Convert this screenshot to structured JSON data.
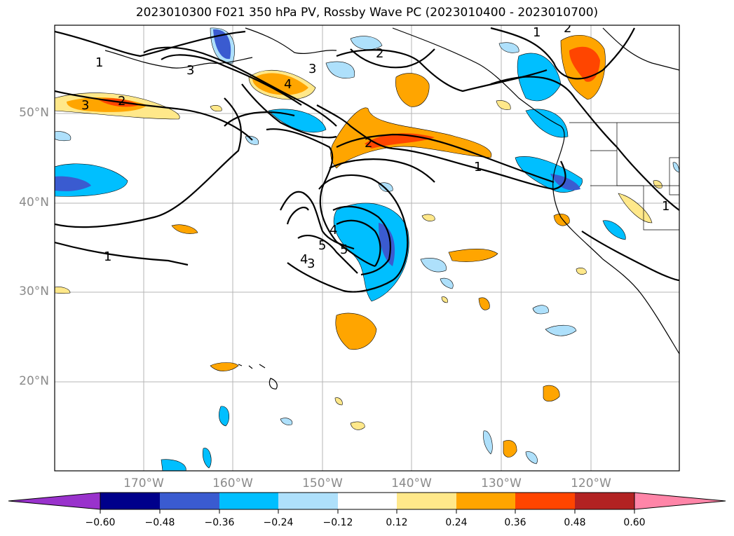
{
  "title": "2023010300 F021 350 hPa PV, Rossby Wave PC (2023010400 - 2023010700)",
  "map": {
    "longitude_labels": [
      "170°W",
      "160°W",
      "150°W",
      "140°W",
      "130°W",
      "120°W"
    ],
    "latitude_labels": [
      "50°N",
      "40°N",
      "30°N",
      "20°N"
    ],
    "contour_labels": [
      "1",
      "2",
      "3",
      "4",
      "5",
      "2",
      "3",
      "2",
      "4",
      "3",
      "1",
      "1",
      "2",
      "3",
      "4",
      "5",
      "1",
      "1"
    ]
  },
  "colorbar": {
    "ticks": [
      "−0.60",
      "−0.48",
      "−0.36",
      "−0.24",
      "−0.12",
      "0.12",
      "0.24",
      "0.36",
      "0.48",
      "0.60"
    ],
    "colors": [
      "#9932cc",
      "#00008b",
      "#3a5bd0",
      "#00bfff",
      "#aee0fb",
      "#ffffff",
      "#ffe88a",
      "#ffa500",
      "#ff4500",
      "#b22222",
      "#ff85a8"
    ]
  }
}
